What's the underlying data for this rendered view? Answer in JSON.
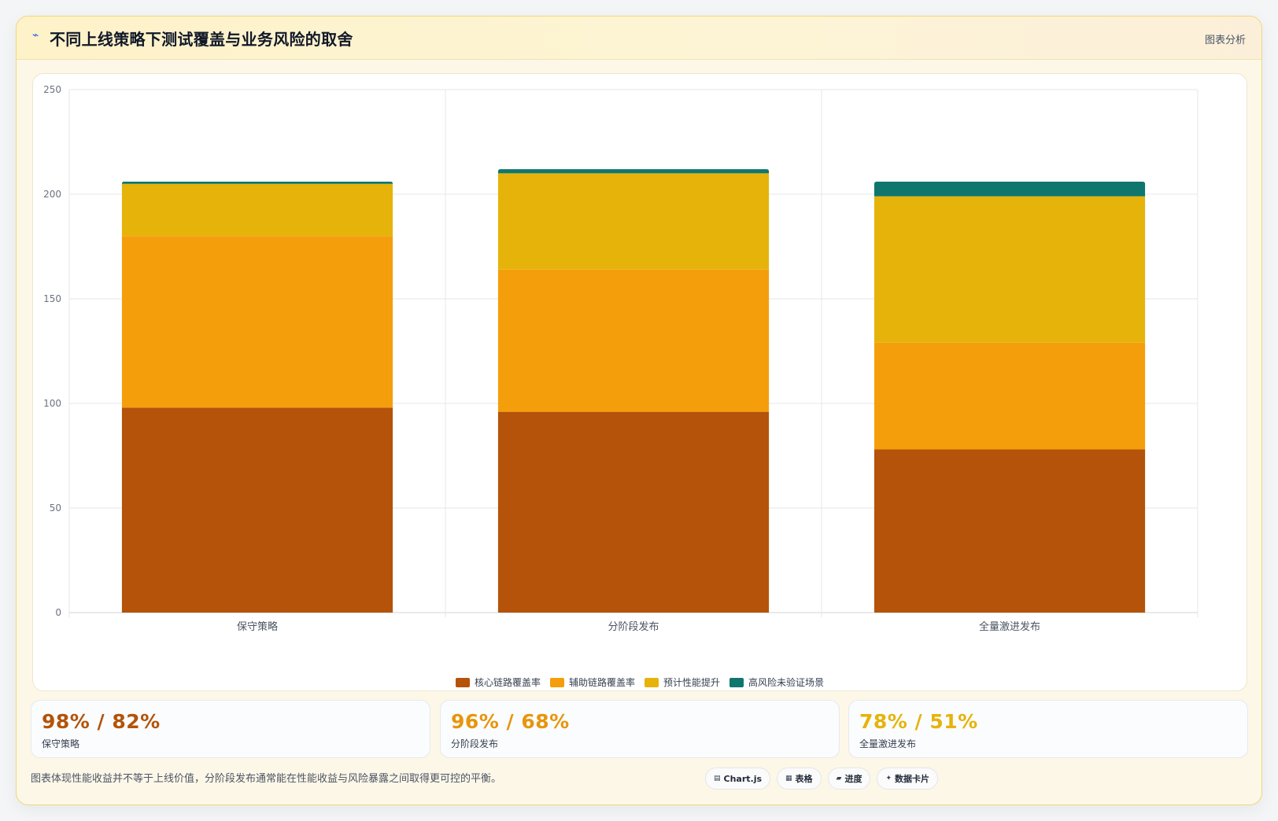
{
  "header": {
    "icon": "pulse-icon",
    "title": "不同上线策略下测试覆盖与业务风险的取舍",
    "tag": "图表分析"
  },
  "colors": {
    "core": "#b45309",
    "aux": "#f59e0b",
    "perf": "#e6b30a",
    "risk": "#0f766e"
  },
  "chart_data": {
    "type": "bar",
    "stacked": true,
    "categories": [
      "保守策略",
      "分阶段发布",
      "全量激进发布"
    ],
    "series": [
      {
        "name": "核心链路覆盖率",
        "values": [
          98,
          96,
          78
        ],
        "color": "#b45309"
      },
      {
        "name": "辅助链路覆盖率",
        "values": [
          82,
          68,
          51
        ],
        "color": "#f59e0b"
      },
      {
        "name": "预计性能提升",
        "values": [
          25,
          46,
          70
        ],
        "color": "#e6b30a"
      },
      {
        "name": "高风险未验证场景",
        "values": [
          1,
          2,
          7
        ],
        "color": "#0f766e"
      }
    ],
    "ylim": [
      0,
      250
    ],
    "yticks": [
      0,
      50,
      100,
      150,
      200,
      250
    ],
    "grid": true,
    "legend": "bottom"
  },
  "stats": [
    {
      "value": "98% / 82%",
      "label": "保守策略",
      "color": "#b45309"
    },
    {
      "value": "96% / 68%",
      "label": "分阶段发布",
      "color": "#e8950c"
    },
    {
      "value": "78% / 51%",
      "label": "全量激进发布",
      "color": "#e6b30a"
    }
  ],
  "footer": {
    "note": "图表体现性能收益并不等于上线价值，分阶段发布通常能在性能收益与风险暴露之间取得更可控的平衡。",
    "chips": [
      {
        "icon": "chart-icon",
        "glyph": "▤",
        "label": "Chart.js"
      },
      {
        "icon": "table-icon",
        "glyph": "▦",
        "label": "表格"
      },
      {
        "icon": "progress-icon",
        "glyph": "▰",
        "label": "进度"
      },
      {
        "icon": "card-icon",
        "glyph": "✦",
        "label": "数据卡片"
      }
    ]
  }
}
